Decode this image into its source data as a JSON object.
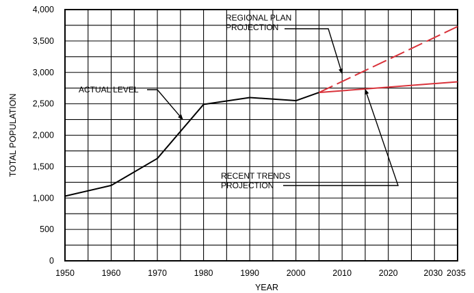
{
  "chart_data": {
    "type": "line",
    "xlabel": "YEAR",
    "ylabel": "TOTAL POPULATION",
    "xlim": [
      1950,
      2035
    ],
    "ylim": [
      0,
      4000
    ],
    "grid": true,
    "x_ticks": [
      1950,
      1960,
      1970,
      1980,
      1990,
      2000,
      2010,
      2020,
      2030,
      2035
    ],
    "x_tick_labels": [
      "1950",
      "1960",
      "1970",
      "1980",
      "1990",
      "2000",
      "2010",
      "2020",
      "2030",
      "2035"
    ],
    "y_ticks": [
      0,
      500,
      1000,
      1500,
      2000,
      2500,
      3000,
      3500,
      4000
    ],
    "y_tick_labels": [
      "0",
      "500",
      "1,000",
      "1,500",
      "2,000",
      "2,500",
      "3,000",
      "3,500",
      "4,000"
    ],
    "series": [
      {
        "x": [
          1950,
          1960,
          1970,
          1980,
          1990,
          2000,
          2005
        ],
        "y": [
          1030,
          1200,
          1630,
          2490,
          2600,
          2550,
          2680
        ],
        "color": "#000000",
        "style": "solid"
      },
      {
        "x": [
          2005,
          2035
        ],
        "y": [
          2680,
          3730
        ],
        "color": "#d9323a",
        "style": "dashed"
      },
      {
        "x": [
          2005,
          2035
        ],
        "y": [
          2680,
          2850
        ],
        "color": "#d9323a",
        "style": "solid"
      }
    ],
    "annotations": [
      {
        "lines": [
          "REGIONAL PLAN",
          "PROJECTION"
        ],
        "target_x": 2010,
        "target_y": 2980
      },
      {
        "lines": [
          "ACTUAL LEVEL"
        ],
        "target_x": 1975.5,
        "target_y": 2250
      },
      {
        "lines": [
          "RECENT TRENDS",
          "PROJECTION"
        ],
        "target_x": 2015,
        "target_y": 2730
      }
    ]
  }
}
